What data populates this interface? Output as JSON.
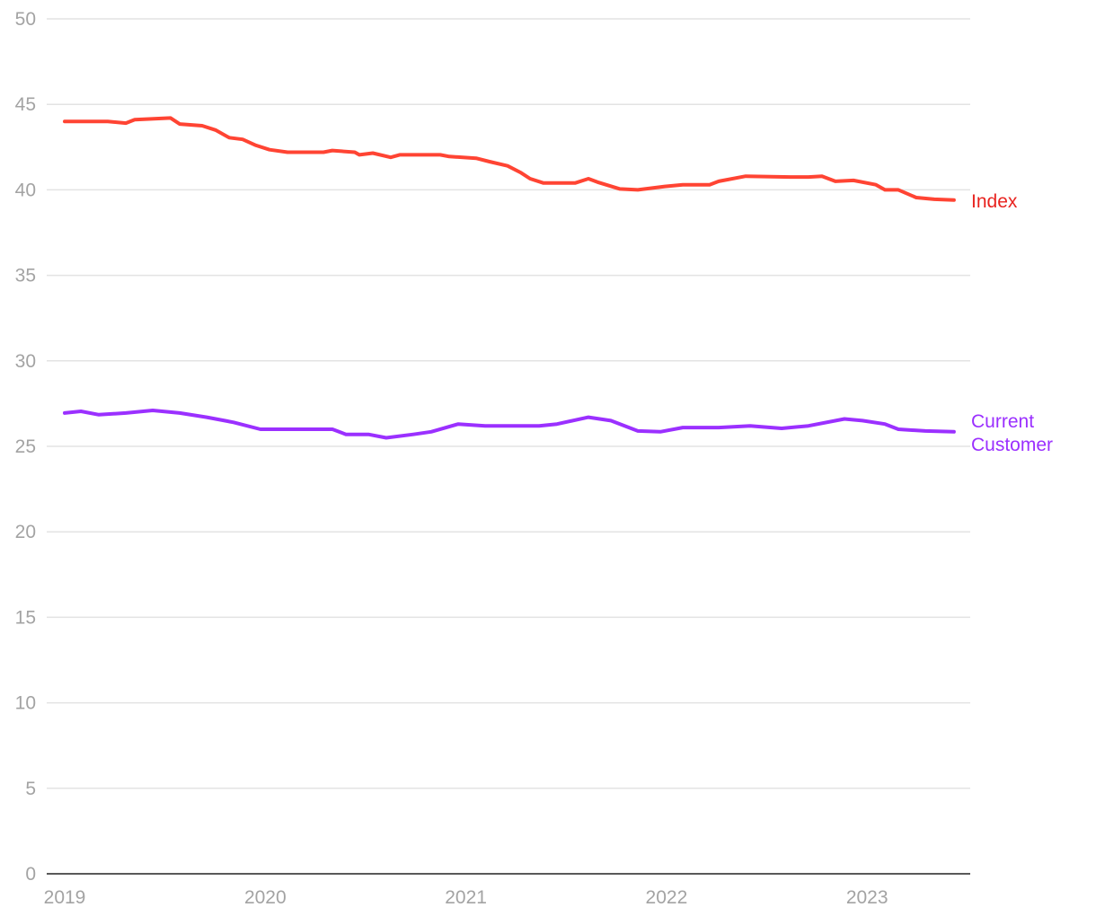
{
  "chart_data": {
    "type": "line",
    "title": "",
    "xlabel": "",
    "ylabel": "",
    "ylim": [
      0,
      50
    ],
    "yticks": [
      0,
      5,
      10,
      15,
      20,
      25,
      30,
      35,
      40,
      45,
      50
    ],
    "xticks": [
      "2019",
      "2020",
      "2021",
      "2022",
      "2023"
    ],
    "xlim": [
      2019,
      2023.5
    ],
    "grid": true,
    "legend": "inline-right",
    "series": [
      {
        "name": "Index",
        "label_lines": [
          "Index"
        ],
        "color": "#ff4433",
        "label_color": "#e8231f",
        "points": [
          [
            2019.0,
            44.0
          ],
          [
            2019.215,
            44.0
          ],
          [
            2019.305,
            43.9
          ],
          [
            2019.349,
            44.1
          ],
          [
            2019.528,
            44.2
          ],
          [
            2019.573,
            43.85
          ],
          [
            2019.685,
            43.75
          ],
          [
            2019.752,
            43.5
          ],
          [
            2019.82,
            43.05
          ],
          [
            2019.887,
            42.95
          ],
          [
            2019.954,
            42.6
          ],
          [
            2020.021,
            42.35
          ],
          [
            2020.111,
            42.2
          ],
          [
            2020.29,
            42.2
          ],
          [
            2020.334,
            42.3
          ],
          [
            2020.446,
            42.2
          ],
          [
            2020.469,
            42.05
          ],
          [
            2020.536,
            42.15
          ],
          [
            2020.625,
            41.9
          ],
          [
            2020.67,
            42.05
          ],
          [
            2020.872,
            42.05
          ],
          [
            2020.917,
            41.95
          ],
          [
            2021.051,
            41.85
          ],
          [
            2021.118,
            41.65
          ],
          [
            2021.208,
            41.4
          ],
          [
            2021.275,
            41.0
          ],
          [
            2021.32,
            40.65
          ],
          [
            2021.387,
            40.4
          ],
          [
            2021.544,
            40.4
          ],
          [
            2021.611,
            40.65
          ],
          [
            2021.656,
            40.45
          ],
          [
            2021.768,
            40.05
          ],
          [
            2021.857,
            40.0
          ],
          [
            2021.992,
            40.2
          ],
          [
            2022.081,
            40.3
          ],
          [
            2022.215,
            40.3
          ],
          [
            2022.26,
            40.5
          ],
          [
            2022.395,
            40.8
          ],
          [
            2022.618,
            40.75
          ],
          [
            2022.708,
            40.75
          ],
          [
            2022.775,
            40.8
          ],
          [
            2022.842,
            40.5
          ],
          [
            2022.932,
            40.55
          ],
          [
            2023.044,
            40.3
          ],
          [
            2023.089,
            40.0
          ],
          [
            2023.156,
            40.0
          ],
          [
            2023.245,
            39.55
          ],
          [
            2023.335,
            39.45
          ],
          [
            2023.433,
            39.4
          ]
        ]
      },
      {
        "name": "Current Customer",
        "label_lines": [
          "Current",
          "Customer"
        ],
        "color": "#9b30ff",
        "label_color": "#9b30ff",
        "points": [
          [
            2019.0,
            26.95
          ],
          [
            2019.081,
            27.05
          ],
          [
            2019.17,
            26.85
          ],
          [
            2019.305,
            26.95
          ],
          [
            2019.439,
            27.1
          ],
          [
            2019.573,
            26.95
          ],
          [
            2019.708,
            26.7
          ],
          [
            2019.842,
            26.4
          ],
          [
            2019.976,
            26.0
          ],
          [
            2020.335,
            26.0
          ],
          [
            2020.402,
            25.7
          ],
          [
            2020.514,
            25.7
          ],
          [
            2020.603,
            25.5
          ],
          [
            2020.738,
            25.7
          ],
          [
            2020.827,
            25.85
          ],
          [
            2020.962,
            26.3
          ],
          [
            2021.096,
            26.2
          ],
          [
            2021.365,
            26.2
          ],
          [
            2021.454,
            26.3
          ],
          [
            2021.611,
            26.7
          ],
          [
            2021.723,
            26.5
          ],
          [
            2021.857,
            25.9
          ],
          [
            2021.969,
            25.85
          ],
          [
            2022.081,
            26.1
          ],
          [
            2022.26,
            26.1
          ],
          [
            2022.417,
            26.2
          ],
          [
            2022.574,
            26.05
          ],
          [
            2022.708,
            26.2
          ],
          [
            2022.887,
            26.6
          ],
          [
            2022.977,
            26.5
          ],
          [
            2023.089,
            26.3
          ],
          [
            2023.156,
            26.0
          ],
          [
            2023.29,
            25.9
          ],
          [
            2023.433,
            25.85
          ]
        ]
      }
    ]
  }
}
